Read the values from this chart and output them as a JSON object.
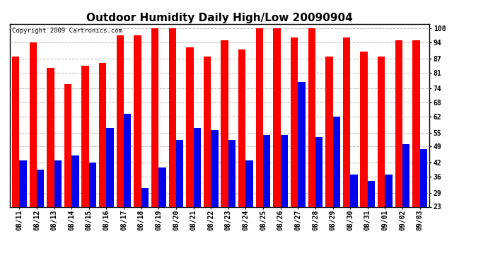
{
  "title": "Outdoor Humidity Daily High/Low 20090904",
  "copyright": "Copyright 2009 Cartronics.com",
  "dates": [
    "08/11",
    "08/12",
    "08/13",
    "08/14",
    "08/15",
    "08/16",
    "08/17",
    "08/18",
    "08/19",
    "08/20",
    "08/21",
    "08/22",
    "08/23",
    "08/24",
    "08/25",
    "08/26",
    "08/27",
    "08/28",
    "08/29",
    "08/30",
    "08/31",
    "09/01",
    "09/02",
    "09/03"
  ],
  "highs": [
    88,
    94,
    83,
    76,
    84,
    85,
    97,
    97,
    100,
    100,
    92,
    88,
    95,
    91,
    100,
    100,
    96,
    100,
    88,
    96,
    90,
    88,
    95,
    95
  ],
  "lows": [
    43,
    39,
    43,
    45,
    42,
    57,
    63,
    31,
    40,
    52,
    57,
    56,
    52,
    43,
    54,
    54,
    77,
    53,
    62,
    37,
    34,
    37,
    50,
    48
  ],
  "y_ticks": [
    23,
    29,
    36,
    42,
    49,
    55,
    62,
    68,
    74,
    81,
    87,
    94,
    100
  ],
  "ylim_min": 23,
  "ylim_max": 102,
  "bar_width": 0.42,
  "high_color": "#FF0000",
  "low_color": "#0000EE",
  "bg_color": "#FFFFFF",
  "grid_color": "#BBBBBB",
  "title_fontsize": 11,
  "tick_fontsize": 7,
  "copyright_fontsize": 6.5
}
